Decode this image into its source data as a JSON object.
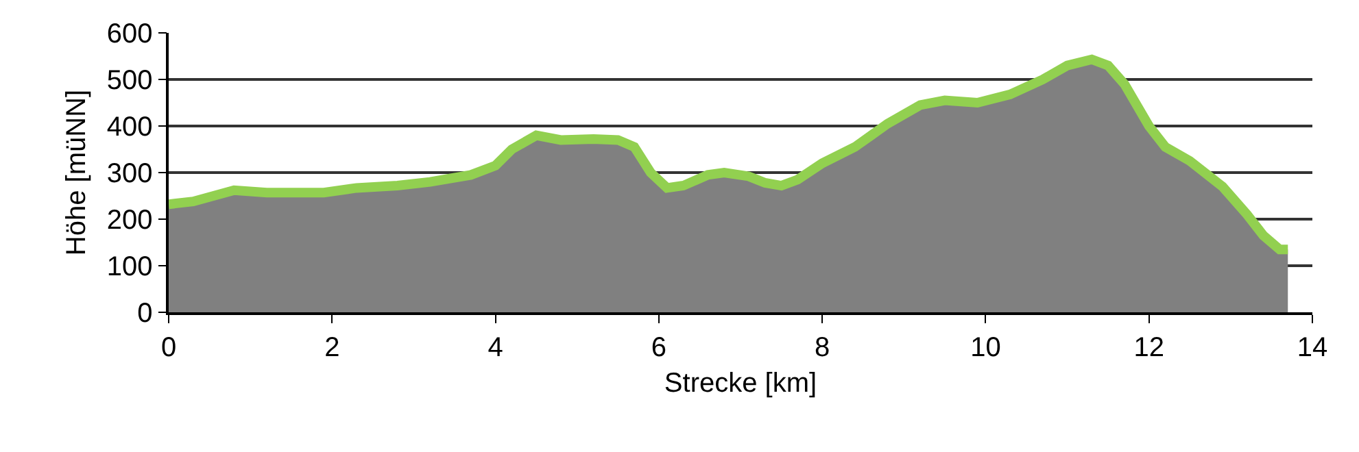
{
  "chart_data": {
    "type": "area",
    "xlabel": "Strecke [km]",
    "ylabel": "Höhe [müNN]",
    "x": [
      0,
      0.3,
      0.8,
      1.2,
      1.9,
      2.3,
      2.8,
      3.2,
      3.7,
      4.0,
      4.2,
      4.5,
      4.8,
      5.2,
      5.5,
      5.7,
      5.9,
      6.1,
      6.3,
      6.6,
      6.8,
      7.1,
      7.3,
      7.5,
      7.7,
      8.0,
      8.4,
      8.8,
      9.2,
      9.5,
      9.9,
      10.3,
      10.7,
      11.0,
      11.3,
      11.5,
      11.7,
      12.0,
      12.2,
      12.5,
      12.9,
      13.2,
      13.4,
      13.6,
      13.7
    ],
    "series": [
      {
        "color": "#92d050",
        "values": [
          232,
          238,
          262,
          257,
          257,
          267,
          272,
          280,
          295,
          315,
          350,
          380,
          370,
          372,
          370,
          355,
          300,
          267,
          272,
          295,
          300,
          292,
          278,
          272,
          285,
          320,
          355,
          405,
          445,
          455,
          450,
          468,
          500,
          530,
          543,
          530,
          490,
          400,
          355,
          325,
          270,
          210,
          165,
          135,
          135
        ]
      }
    ],
    "xlim": [
      0,
      14
    ],
    "xticks": [
      0,
      2,
      4,
      6,
      8,
      10,
      12,
      14
    ],
    "ylim": [
      0,
      600
    ],
    "yticks": [
      0,
      100,
      200,
      300,
      400,
      500,
      600
    ],
    "grid": "y"
  }
}
